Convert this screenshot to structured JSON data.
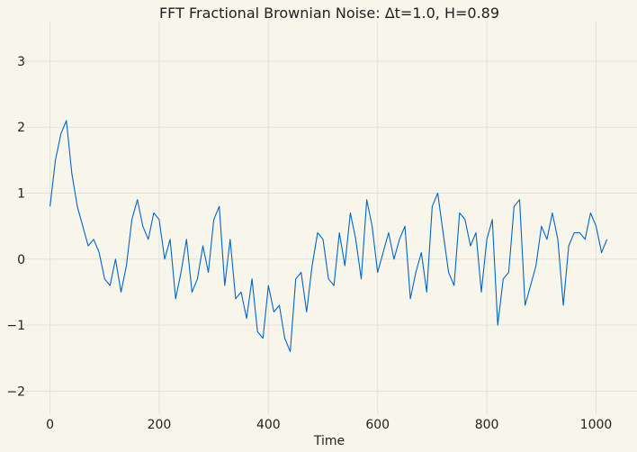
{
  "chart_data": {
    "type": "line",
    "title": "FFT Fractional Brownian Noise: Δt=1.0, H=0.89",
    "xlabel": "Time",
    "ylabel": "",
    "xlim": [
      -52,
      1075
    ],
    "ylim": [
      -2.35,
      3.6
    ],
    "x_ticks": [
      0,
      200,
      400,
      600,
      800,
      1000
    ],
    "x_tick_labels": [
      "0",
      "200",
      "400",
      "600",
      "800",
      "1000"
    ],
    "y_ticks": [
      -2,
      -1,
      0,
      1,
      2,
      3
    ],
    "y_tick_labels": [
      "−2",
      "−1",
      "0",
      "1",
      "2",
      "3"
    ],
    "grid": true,
    "legend": "none",
    "colors": {
      "series": "#0066cc",
      "grid": "#e4e2d8",
      "background": "#f8f5ea",
      "text": "#222222"
    },
    "series": [
      {
        "x_start": 0,
        "x_step": 10,
        "values": [
          0.8,
          1.5,
          1.9,
          2.1,
          1.3,
          0.8,
          0.5,
          0.2,
          0.3,
          0.1,
          -0.3,
          -0.4,
          0.0,
          -0.5,
          -0.1,
          0.6,
          0.9,
          0.5,
          0.3,
          0.7,
          0.6,
          0.0,
          0.3,
          -0.6,
          -0.2,
          0.3,
          -0.5,
          -0.3,
          0.2,
          -0.2,
          0.6,
          0.8,
          -0.4,
          0.3,
          -0.6,
          -0.5,
          -0.9,
          -0.3,
          -1.1,
          -1.2,
          -0.4,
          -0.8,
          -0.7,
          -1.2,
          -1.4,
          -0.3,
          -0.2,
          -0.8,
          -0.1,
          0.4,
          0.3,
          -0.3,
          -0.4,
          0.4,
          -0.1,
          0.7,
          0.3,
          -0.3,
          0.9,
          0.5,
          -0.2,
          0.1,
          0.4,
          0.0,
          0.3,
          0.5,
          -0.6,
          -0.2,
          0.1,
          -0.5,
          0.8,
          1.0,
          0.4,
          -0.2,
          -0.4,
          0.7,
          0.6,
          0.2,
          0.4,
          -0.5,
          0.3,
          0.6,
          -1.0,
          -0.3,
          -0.2,
          0.8,
          0.9,
          -0.7,
          -0.4,
          -0.1,
          0.5,
          0.3,
          0.7,
          0.3,
          -0.7,
          0.2,
          0.4,
          0.4,
          0.3,
          0.7,
          0.5,
          0.1,
          0.3
        ]
      }
    ]
  }
}
